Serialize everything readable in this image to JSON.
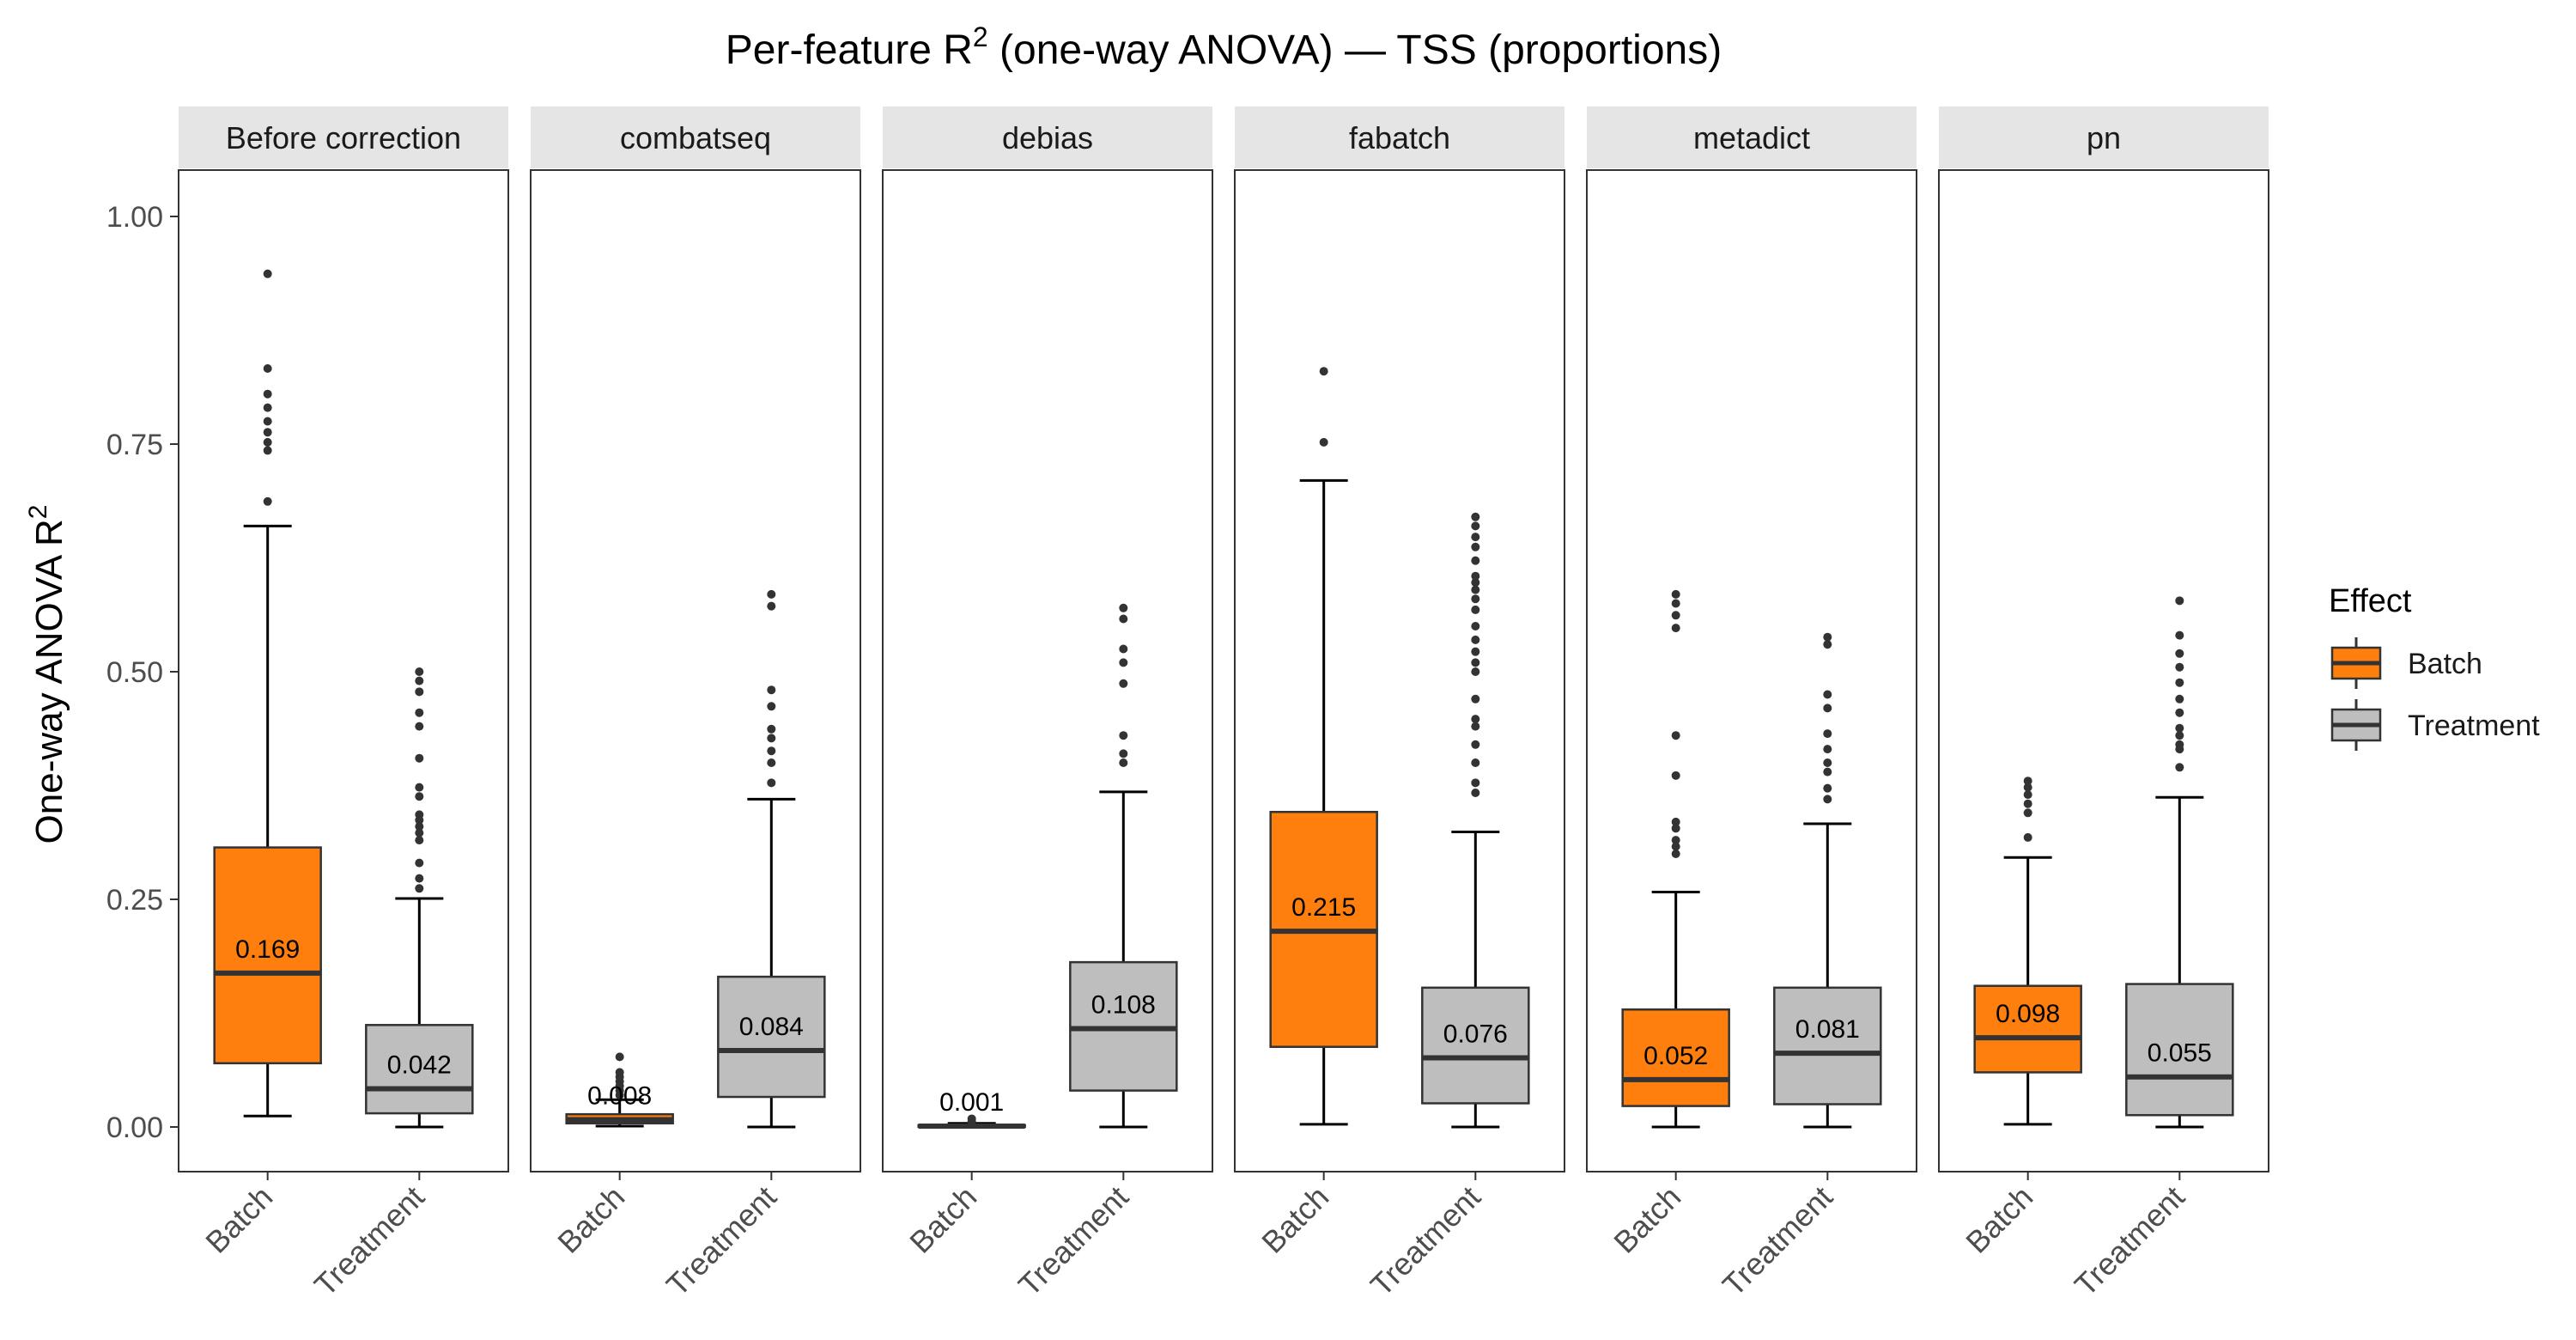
{
  "chart_data": {
    "type": "boxplot",
    "title_main": "Per-feature R",
    "title_sup": "2",
    "title_rest": " (one-way ANOVA) — TSS (proportions)",
    "ylabel_main": "One-way ANOVA R",
    "ylabel_sup": "2",
    "ylim": [
      -0.05,
      1.05
    ],
    "yticks": [
      0.0,
      0.25,
      0.5,
      0.75,
      1.0
    ],
    "ytick_labels": [
      "0.00",
      "0.25",
      "0.50",
      "0.75",
      "1.00"
    ],
    "categories": [
      "Batch",
      "Treatment"
    ],
    "legend_title": "Effect",
    "legend_position": "right",
    "legend_items": [
      "Batch",
      "Treatment"
    ],
    "colors": {
      "Batch": "#ff7f0e",
      "Treatment": "#bebebe"
    },
    "panels": [
      {
        "name": "Before correction",
        "boxes": [
          {
            "effect": "Batch",
            "whisker_low": 0.012,
            "q1": 0.07,
            "median": 0.169,
            "q3": 0.307,
            "whisker_high": 0.66,
            "median_label": "0.169",
            "outliers": [
              0.687,
              0.743,
              0.752,
              0.763,
              0.775,
              0.79,
              0.805,
              0.833,
              0.937
            ]
          },
          {
            "effect": "Treatment",
            "whisker_low": 0.0,
            "q1": 0.015,
            "median": 0.042,
            "q3": 0.112,
            "whisker_high": 0.251,
            "median_label": "0.042",
            "outliers": [
              0.262,
              0.273,
              0.29,
              0.315,
              0.323,
              0.33,
              0.337,
              0.343,
              0.363,
              0.373,
              0.405,
              0.44,
              0.455,
              0.478,
              0.49,
              0.5
            ]
          }
        ]
      },
      {
        "name": "combatseq",
        "boxes": [
          {
            "effect": "Batch",
            "whisker_low": 0.001,
            "q1": 0.004,
            "median": 0.008,
            "q3": 0.014,
            "whisker_high": 0.03,
            "median_label": "0.008",
            "outliers": [
              0.035,
              0.04,
              0.045,
              0.05,
              0.055,
              0.06,
              0.077
            ]
          },
          {
            "effect": "Treatment",
            "whisker_low": 0.0,
            "q1": 0.033,
            "median": 0.084,
            "q3": 0.165,
            "whisker_high": 0.36,
            "median_label": "0.084",
            "outliers": [
              0.378,
              0.4,
              0.413,
              0.427,
              0.437,
              0.462,
              0.48,
              0.572,
              0.585
            ]
          }
        ]
      },
      {
        "name": "debias",
        "boxes": [
          {
            "effect": "Batch",
            "whisker_low": 0.0,
            "q1": 0.0005,
            "median": 0.001,
            "q3": 0.002,
            "whisker_high": 0.004,
            "median_label": "0.001",
            "outliers": [
              0.006,
              0.009
            ]
          },
          {
            "effect": "Treatment",
            "whisker_low": 0.0,
            "q1": 0.04,
            "median": 0.108,
            "q3": 0.181,
            "whisker_high": 0.368,
            "median_label": "0.108",
            "outliers": [
              0.4,
              0.41,
              0.43,
              0.487,
              0.51,
              0.525,
              0.558,
              0.57
            ]
          }
        ]
      },
      {
        "name": "fabatch",
        "boxes": [
          {
            "effect": "Batch",
            "whisker_low": 0.003,
            "q1": 0.088,
            "median": 0.215,
            "q3": 0.346,
            "whisker_high": 0.71,
            "median_label": "0.215",
            "outliers": [
              0.752,
              0.83
            ]
          },
          {
            "effect": "Treatment",
            "whisker_low": 0.0,
            "q1": 0.026,
            "median": 0.076,
            "q3": 0.153,
            "whisker_high": 0.324,
            "median_label": "0.076",
            "outliers": [
              0.367,
              0.378,
              0.4,
              0.42,
              0.44,
              0.448,
              0.47,
              0.5,
              0.51,
              0.522,
              0.535,
              0.55,
              0.568,
              0.58,
              0.59,
              0.598,
              0.605,
              0.622,
              0.637,
              0.648,
              0.66,
              0.67
            ]
          }
        ]
      },
      {
        "name": "metadict",
        "boxes": [
          {
            "effect": "Batch",
            "whisker_low": 0.0,
            "q1": 0.023,
            "median": 0.052,
            "q3": 0.129,
            "whisker_high": 0.258,
            "median_label": "0.052",
            "outliers": [
              0.3,
              0.308,
              0.315,
              0.328,
              0.335,
              0.386,
              0.43,
              0.548,
              0.562,
              0.575,
              0.585
            ]
          },
          {
            "effect": "Treatment",
            "whisker_low": 0.0,
            "q1": 0.025,
            "median": 0.081,
            "q3": 0.153,
            "whisker_high": 0.333,
            "median_label": "0.081",
            "outliers": [
              0.36,
              0.372,
              0.39,
              0.4,
              0.415,
              0.432,
              0.46,
              0.475,
              0.53,
              0.538
            ]
          }
        ]
      },
      {
        "name": "pn",
        "boxes": [
          {
            "effect": "Batch",
            "whisker_low": 0.003,
            "q1": 0.06,
            "median": 0.098,
            "q3": 0.155,
            "whisker_high": 0.296,
            "median_label": "0.098",
            "outliers": [
              0.318,
              0.345,
              0.355,
              0.365,
              0.373,
              0.38
            ]
          },
          {
            "effect": "Treatment",
            "whisker_low": 0.0,
            "q1": 0.013,
            "median": 0.055,
            "q3": 0.157,
            "whisker_high": 0.362,
            "median_label": "0.055",
            "outliers": [
              0.395,
              0.415,
              0.42,
              0.43,
              0.438,
              0.455,
              0.47,
              0.488,
              0.505,
              0.52,
              0.54,
              0.578
            ]
          }
        ]
      }
    ]
  }
}
